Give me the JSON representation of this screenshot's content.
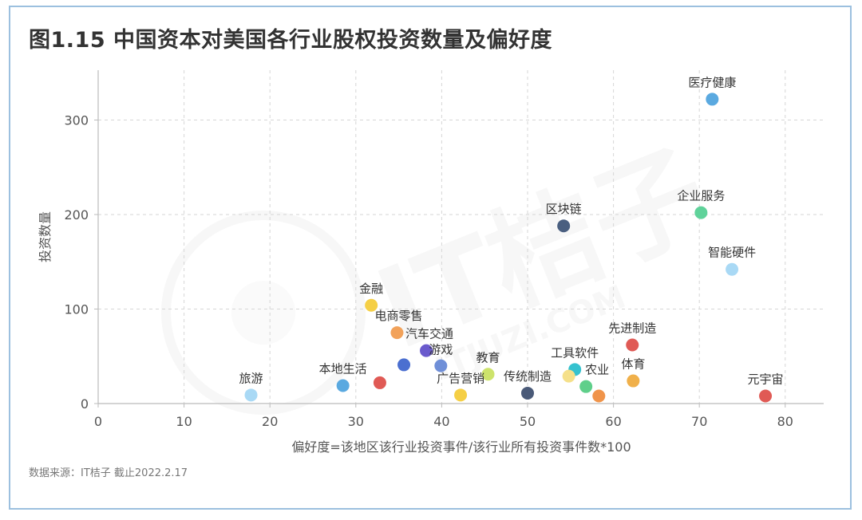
{
  "title": "图1.15 中国资本对美国各行业股权投资数量及偏好度",
  "source": "数据来源：IT桔子 截止2022.2.17",
  "watermark": {
    "brand": "IT桔子",
    "url": "ITJUZI.COM"
  },
  "chart_data": {
    "type": "scatter",
    "title": "图1.15 中国资本对美国各行业股权投资数量及偏好度",
    "xlabel": "偏好度=该地区该行业投资事件/该行业所有投资事件数*100",
    "ylabel": "投资数量",
    "xlim": [
      0,
      85
    ],
    "ylim": [
      0,
      350
    ],
    "xticks": [
      0,
      10,
      20,
      30,
      40,
      50,
      60,
      70,
      80
    ],
    "yticks": [
      0,
      100,
      200,
      300
    ],
    "grid": true,
    "points": [
      {
        "label": "医疗健康",
        "x": 71.5,
        "y": 322,
        "color": "#5aa9e0"
      },
      {
        "label": "企业服务",
        "x": 70.2,
        "y": 202,
        "color": "#5fd29a"
      },
      {
        "label": "区块链",
        "x": 54.2,
        "y": 188,
        "color": "#4a5f80"
      },
      {
        "label": "智能硬件",
        "x": 73.8,
        "y": 142,
        "color": "#a9d9f5"
      },
      {
        "label": "金融",
        "x": 31.8,
        "y": 104,
        "color": "#f5cf45"
      },
      {
        "label": "电商零售",
        "x": 34.8,
        "y": 75,
        "color": "#f2a25a"
      },
      {
        "label": "汽车交通",
        "x": 38.2,
        "y": 56,
        "color": "#6a5acd"
      },
      {
        "label": "游戏",
        "x": 39.9,
        "y": 40,
        "color": "#6f8fd8"
      },
      {
        "label": "",
        "x": 35.6,
        "y": 41,
        "color": "#4b6fd0"
      },
      {
        "label": "先进制造",
        "x": 62.2,
        "y": 62,
        "color": "#e05a55"
      },
      {
        "label": "工具软件",
        "x": 55.5,
        "y": 36,
        "color": "#35c2cf"
      },
      {
        "label": "",
        "x": 54.8,
        "y": 29,
        "color": "#f5e08a"
      },
      {
        "label": "教育",
        "x": 45.4,
        "y": 31,
        "color": "#cde36c"
      },
      {
        "label": "体育",
        "x": 62.3,
        "y": 24,
        "color": "#f0b04a"
      },
      {
        "label": "农业",
        "x": 56.8,
        "y": 18,
        "color": "#5fcf8a"
      },
      {
        "label": "",
        "x": 58.3,
        "y": 8,
        "color": "#f0944a"
      },
      {
        "label": "传统制造",
        "x": 50.0,
        "y": 11,
        "color": "#4a5a78"
      },
      {
        "label": "广告营销",
        "x": 42.2,
        "y": 9,
        "color": "#f5cf45"
      },
      {
        "label": "",
        "x": 32.8,
        "y": 22,
        "color": "#e05a55"
      },
      {
        "label": "本地生活",
        "x": 28.5,
        "y": 19,
        "color": "#5aa9e0"
      },
      {
        "label": "旅游",
        "x": 17.8,
        "y": 9,
        "color": "#a9d9f5"
      },
      {
        "label": "元宇宙",
        "x": 77.7,
        "y": 8,
        "color": "#e05a55"
      }
    ]
  }
}
